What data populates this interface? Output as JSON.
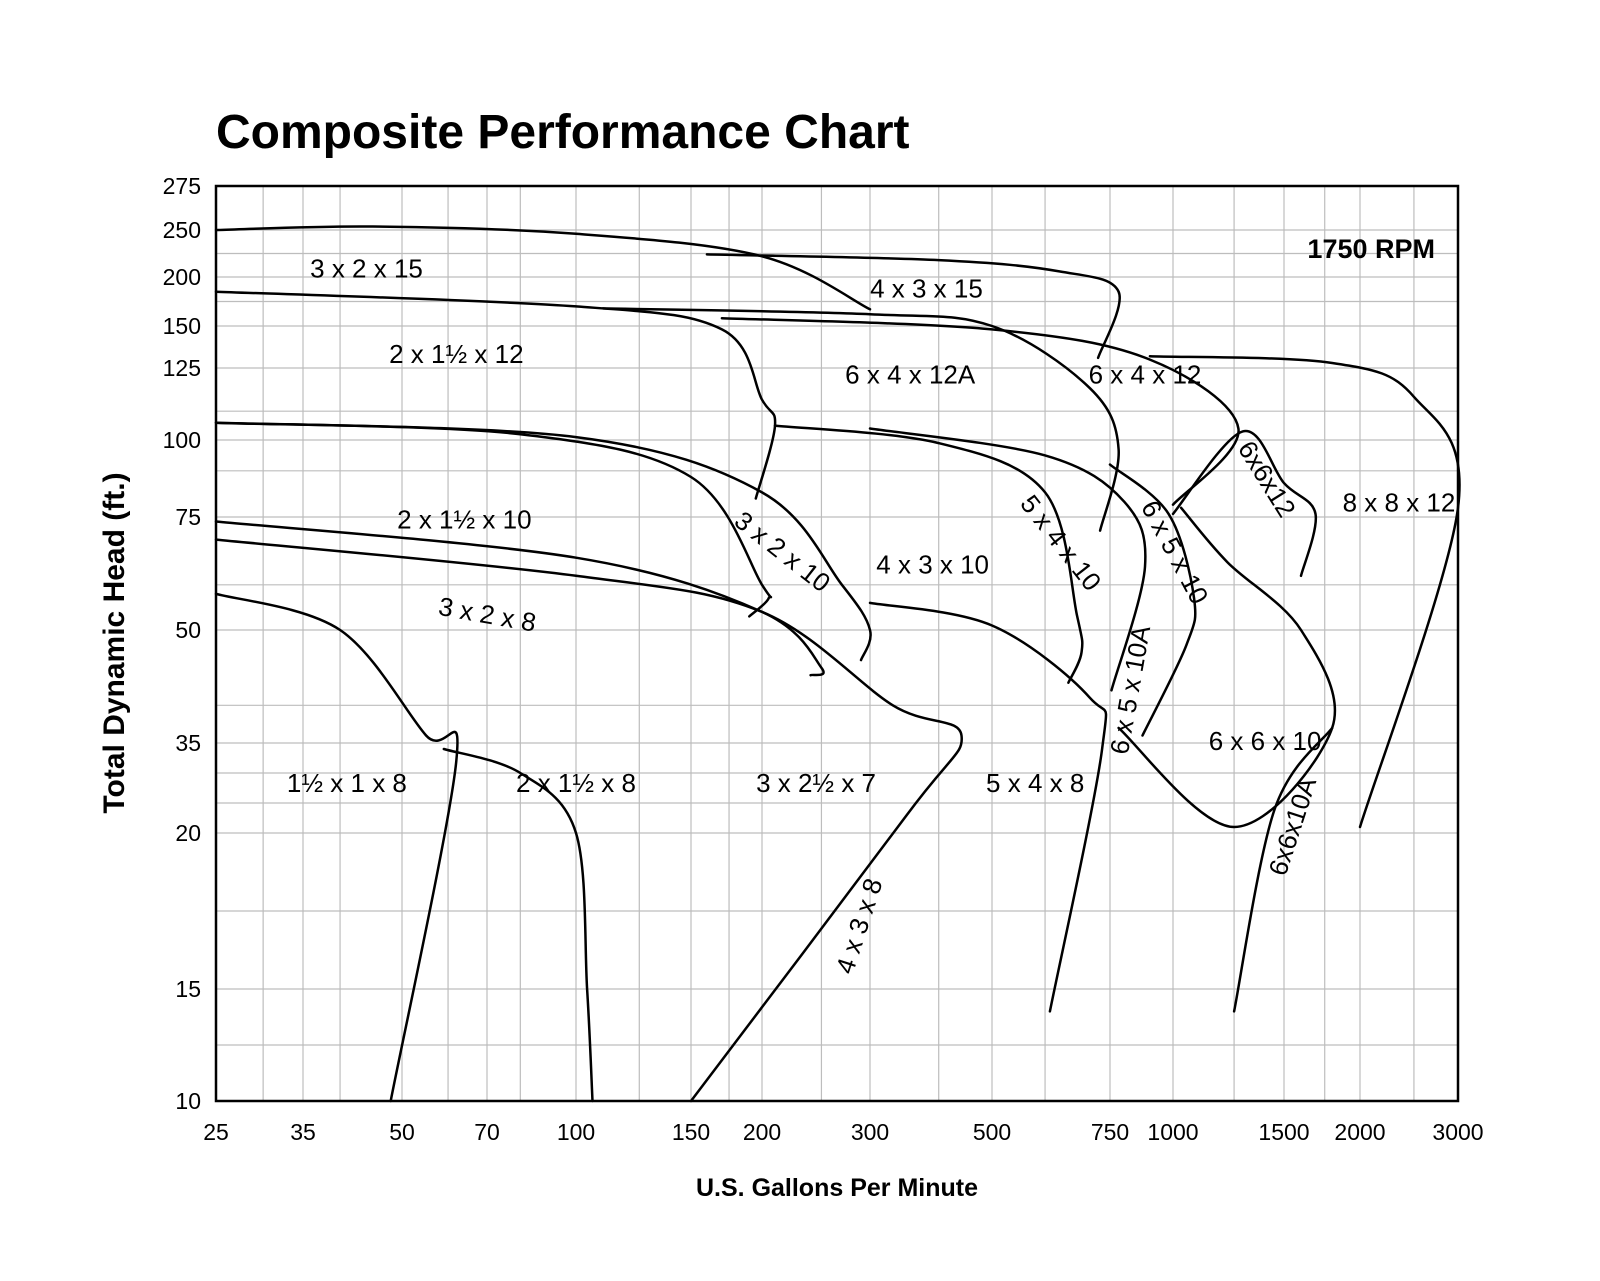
{
  "chart_data": {
    "type": "line",
    "title": "Composite Performance Chart",
    "xlabel": "U.S. Gallons Per Minute",
    "ylabel": "Total Dynamic Head (ft.)",
    "annotation": "1750 RPM",
    "grid": true,
    "x_ticks": [
      25,
      35,
      50,
      70,
      100,
      150,
      200,
      300,
      500,
      750,
      1000,
      1500,
      2000,
      3000
    ],
    "y_ticks": [
      10,
      15,
      20,
      35,
      50,
      75,
      100,
      125,
      150,
      200,
      250,
      275
    ],
    "x_tick_labels": [
      "25",
      "35",
      "50",
      "70",
      "100",
      "150",
      "200",
      "300",
      "500",
      "750",
      "1000",
      "1500",
      "2000",
      "3000"
    ],
    "y_tick_labels": [
      "10",
      "15",
      "20",
      "35",
      "50",
      "75",
      "100",
      "125",
      "150",
      "200",
      "250",
      "275"
    ],
    "series": [
      {
        "name": "3 x 2 x 15",
        "points": [
          [
            25,
            250
          ],
          [
            45,
            252
          ],
          [
            100,
            246
          ],
          [
            200,
            222
          ],
          [
            300,
            167
          ]
        ]
      },
      {
        "name": "4 x 3 x 15",
        "points": [
          [
            160,
            224
          ],
          [
            400,
            218
          ],
          [
            630,
            206
          ],
          [
            780,
            185
          ],
          [
            720,
            131
          ]
        ]
      },
      {
        "name": "2 x 1½ x 12",
        "points": [
          [
            25,
            185
          ],
          [
            100,
            170
          ],
          [
            170,
            148
          ],
          [
            200,
            114
          ],
          [
            210,
            105
          ],
          [
            195,
            81
          ]
        ]
      },
      {
        "name": "6 x 4 x 12A",
        "points": [
          [
            110,
            168
          ],
          [
            300,
            162
          ],
          [
            500,
            150
          ],
          [
            700,
            118
          ],
          [
            780,
            97
          ],
          [
            725,
            72
          ]
        ]
      },
      {
        "name": "6 x 4 x 12",
        "points": [
          [
            170,
            158
          ],
          [
            500,
            148
          ],
          [
            900,
            130
          ],
          [
            1270,
            104
          ],
          [
            1000,
            79
          ]
        ]
      },
      {
        "name": "8 x 8 x 12",
        "points": [
          [
            900,
            132
          ],
          [
            1800,
            128
          ],
          [
            2500,
            115
          ],
          [
            3000,
            78
          ],
          [
            2000,
            21
          ]
        ]
      },
      {
        "name": "2 x 1½ x 10",
        "points": [
          [
            25,
            106
          ],
          [
            80,
            102
          ],
          [
            150,
            88
          ],
          [
            200,
            60
          ],
          [
            205,
            57
          ],
          [
            190,
            53
          ]
        ]
      },
      {
        "name": "3 x 2 x 10",
        "points": [
          [
            25,
            106
          ],
          [
            100,
            101
          ],
          [
            200,
            83
          ],
          [
            270,
            60
          ],
          [
            300,
            50
          ],
          [
            290,
            46
          ]
        ]
      },
      {
        "name": "4 x 3 x 10",
        "points": [
          [
            210,
            105
          ],
          [
            400,
            99
          ],
          [
            600,
            83
          ],
          [
            670,
            53
          ],
          [
            680,
            47
          ],
          [
            650,
            43
          ]
        ]
      },
      {
        "name": "5 x 4 x 10",
        "points": [
          [
            300,
            104
          ],
          [
            600,
            95
          ],
          [
            800,
            80
          ],
          [
            880,
            64
          ],
          [
            755,
            42
          ]
        ]
      },
      {
        "name": "6 x 5 x 10",
        "points": [
          [
            750,
            92
          ],
          [
            980,
            76
          ],
          [
            1080,
            57
          ],
          [
            1050,
            48
          ],
          [
            870,
            36
          ]
        ]
      },
      {
        "name": "6x6x12",
        "points": [
          [
            1000,
            76
          ],
          [
            1290,
            103
          ],
          [
            1500,
            86
          ],
          [
            1690,
            76
          ],
          [
            1600,
            62
          ]
        ]
      },
      {
        "name": "3 x 2 x 8",
        "points": [
          [
            25,
            74
          ],
          [
            100,
            66
          ],
          [
            200,
            54
          ],
          [
            250,
            45
          ],
          [
            240,
            44
          ]
        ]
      },
      {
        "name": "3 x 2½ x 7",
        "points": [
          [
            25,
            70
          ],
          [
            100,
            62
          ],
          [
            200,
            54
          ],
          [
            330,
            40
          ],
          [
            440,
            36
          ],
          [
            350,
            23
          ],
          [
            150,
            10
          ]
        ]
      },
      {
        "name": "5 x 4 x 8",
        "points": [
          [
            300,
            56
          ],
          [
            500,
            51
          ],
          [
            700,
            41
          ],
          [
            730,
            34
          ],
          [
            610,
            14
          ]
        ]
      },
      {
        "name": "1½ x 1 x 8",
        "points": [
          [
            25,
            58
          ],
          [
            40,
            50
          ],
          [
            55,
            36
          ],
          [
            62,
            32
          ],
          [
            48,
            10
          ]
        ]
      },
      {
        "name": "2 x 1½ x 8",
        "points": [
          [
            59,
            34
          ],
          [
            80,
            30
          ],
          [
            100,
            20
          ],
          [
            104,
            15
          ],
          [
            106,
            10
          ]
        ]
      },
      {
        "name": "6 x 6 x 10",
        "points": [
          [
            1030,
            78
          ],
          [
            1220,
            65
          ],
          [
            1600,
            50
          ],
          [
            1800,
            37
          ],
          [
            1250,
            21
          ],
          [
            780,
            37
          ]
        ]
      },
      {
        "name": "6x6x10A",
        "points": [
          [
            1800,
            37
          ],
          [
            1450,
            24
          ],
          [
            1250,
            14
          ]
        ]
      }
    ]
  }
}
